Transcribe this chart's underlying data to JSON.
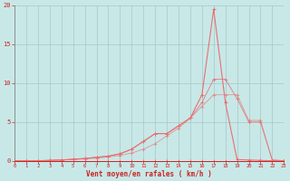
{
  "xlabel": "Vent moyen/en rafales ( km/h )",
  "bg_color": "#c8e8e8",
  "line_color": "#e87070",
  "grid_color": "#a8c8c8",
  "axis_color": "#cc2222",
  "xlim": [
    0,
    23
  ],
  "ylim": [
    0,
    20
  ],
  "xticks": [
    0,
    1,
    2,
    3,
    4,
    5,
    6,
    7,
    8,
    9,
    10,
    11,
    12,
    13,
    14,
    15,
    16,
    17,
    18,
    19,
    20,
    21,
    22,
    23
  ],
  "yticks": [
    0,
    5,
    10,
    15,
    20
  ],
  "series": [
    {
      "x": [
        0,
        1,
        2,
        3,
        4,
        5,
        6,
        7,
        8,
        9,
        10,
        11,
        12,
        13,
        14,
        15,
        16,
        17,
        18,
        19,
        20,
        21,
        22,
        23
      ],
      "y": [
        0,
        0,
        0,
        0,
        0,
        0,
        0,
        0,
        0,
        0,
        0,
        0,
        0,
        0,
        0,
        0,
        0,
        0,
        0,
        0,
        0,
        0,
        0,
        0
      ],
      "alpha": 1.0,
      "lw": 0.7
    },
    {
      "x": [
        0,
        1,
        2,
        3,
        4,
        5,
        6,
        7,
        8,
        9,
        10,
        11,
        12,
        13,
        14,
        15,
        16,
        17,
        18,
        19,
        20,
        21,
        22,
        23
      ],
      "y": [
        0,
        0,
        0,
        0.05,
        0.1,
        0.15,
        0.25,
        0.35,
        0.5,
        0.7,
        1.0,
        1.5,
        2.2,
        3.2,
        4.2,
        5.5,
        7.0,
        8.5,
        8.5,
        8.5,
        5.2,
        5.2,
        0.1,
        0.0
      ],
      "alpha": 0.6,
      "lw": 0.7
    },
    {
      "x": [
        0,
        1,
        2,
        3,
        4,
        5,
        6,
        7,
        8,
        9,
        10,
        11,
        12,
        13,
        14,
        15,
        16,
        17,
        18,
        19,
        20,
        21,
        22,
        23
      ],
      "y": [
        0,
        0,
        0,
        0.05,
        0.1,
        0.2,
        0.3,
        0.45,
        0.6,
        0.9,
        1.5,
        2.5,
        3.5,
        3.5,
        4.5,
        5.5,
        7.5,
        10.5,
        10.5,
        8.0,
        5.0,
        5.0,
        0.1,
        0.0
      ],
      "alpha": 0.8,
      "lw": 0.7
    },
    {
      "x": [
        0,
        1,
        2,
        3,
        4,
        5,
        6,
        7,
        8,
        9,
        10,
        11,
        12,
        13,
        14,
        15,
        16,
        17,
        18,
        19,
        20,
        21,
        22,
        23
      ],
      "y": [
        0,
        0,
        0,
        0.05,
        0.1,
        0.2,
        0.3,
        0.45,
        0.6,
        0.9,
        1.5,
        2.5,
        3.5,
        3.5,
        4.5,
        5.5,
        8.5,
        19.5,
        7.5,
        0.15,
        0.1,
        0.05,
        0.0,
        0.0
      ],
      "alpha": 1.0,
      "lw": 0.8
    }
  ]
}
